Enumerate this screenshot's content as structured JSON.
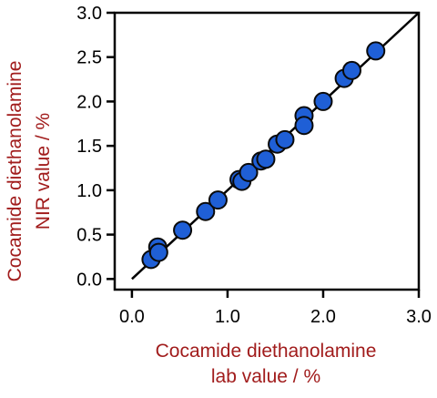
{
  "chart_data": {
    "type": "scatter",
    "title": "",
    "xlabel_lines": [
      "Cocamide diethanolamine",
      "lab value / %"
    ],
    "ylabel_lines": [
      "Cocamide diethanolamine",
      "NIR value / %"
    ],
    "xlim": [
      -0.18,
      3.0
    ],
    "ylim": [
      -0.12,
      3.0
    ],
    "xticks": [
      0.0,
      1.0,
      2.0,
      3.0
    ],
    "xtick_labels": [
      "0.0",
      "1.0",
      "2.0",
      "3.0"
    ],
    "yticks": [
      0.0,
      0.5,
      1.0,
      1.5,
      2.0,
      2.5,
      3.0
    ],
    "ytick_labels": [
      "0.0",
      "0.5",
      "1.0",
      "1.5",
      "2.0",
      "2.5",
      "3.0"
    ],
    "grid": false,
    "legend": "none",
    "fit_line": {
      "x": [
        0.0,
        3.0
      ],
      "y": [
        0.0,
        3.0
      ]
    },
    "points": [
      {
        "x": 0.2,
        "y": 0.22
      },
      {
        "x": 0.27,
        "y": 0.36
      },
      {
        "x": 0.28,
        "y": 0.3
      },
      {
        "x": 0.53,
        "y": 0.55
      },
      {
        "x": 0.77,
        "y": 0.76
      },
      {
        "x": 0.9,
        "y": 0.89
      },
      {
        "x": 1.12,
        "y": 1.12
      },
      {
        "x": 1.15,
        "y": 1.1
      },
      {
        "x": 1.22,
        "y": 1.2
      },
      {
        "x": 1.35,
        "y": 1.33
      },
      {
        "x": 1.4,
        "y": 1.35
      },
      {
        "x": 1.52,
        "y": 1.52
      },
      {
        "x": 1.6,
        "y": 1.57
      },
      {
        "x": 1.8,
        "y": 1.84
      },
      {
        "x": 1.8,
        "y": 1.73
      },
      {
        "x": 2.0,
        "y": 2.0
      },
      {
        "x": 2.22,
        "y": 2.26
      },
      {
        "x": 2.3,
        "y": 2.35
      },
      {
        "x": 2.55,
        "y": 2.57
      }
    ],
    "colors": {
      "marker_fill": "#1f5fd6",
      "marker_stroke": "#0a0a0a",
      "fit_line": "#000000",
      "axis": "#000000",
      "label_text": "#a11c1c",
      "tick_text": "#000000"
    }
  }
}
